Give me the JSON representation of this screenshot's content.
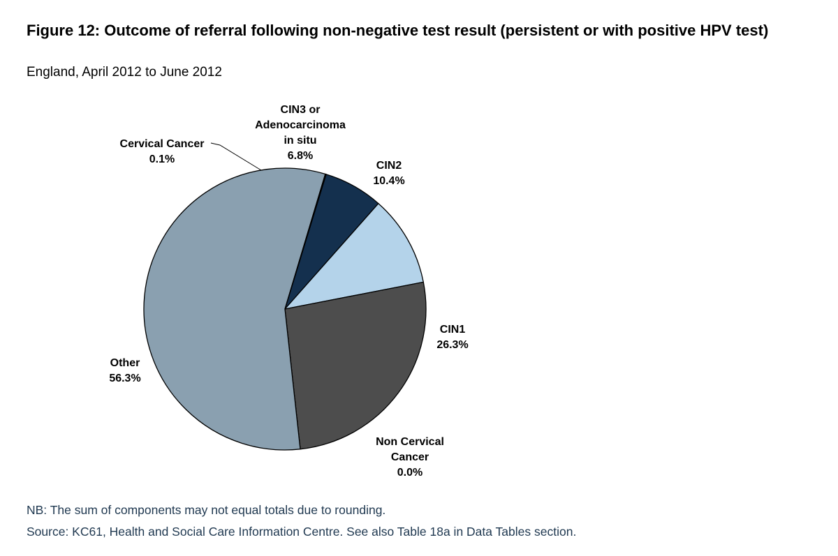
{
  "title": "Figure 12: Outcome of referral following non-negative test result (persistent or with positive HPV test)",
  "subtitle": "England, April 2012 to June 2012",
  "note": "NB: The sum of components may not equal totals due to rounding.",
  "source": "Source: KC61, Health and Social Care Information Centre. See also Table 18a in Data Tables section.",
  "chart_data": {
    "type": "pie",
    "slices": [
      {
        "label_lines": [
          "CIN3 or",
          "Adenocarcinoma",
          "in situ",
          "6.8%"
        ],
        "category": "CIN3 or Adenocarcinoma in situ",
        "value": 6.8,
        "color": "#14304e"
      },
      {
        "label_lines": [
          "CIN2",
          "10.4%"
        ],
        "category": "CIN2",
        "value": 10.4,
        "color": "#b4d3ea"
      },
      {
        "label_lines": [
          "CIN1",
          "26.3%"
        ],
        "category": "CIN1",
        "value": 26.3,
        "color": "#4d4d4d"
      },
      {
        "label_lines": [
          "Non Cervical",
          "Cancer",
          "0.0%"
        ],
        "category": "Non Cervical Cancer",
        "value": 0.0,
        "color": "#d9d9d9"
      },
      {
        "label_lines": [
          "Other",
          "56.3%"
        ],
        "category": "Other",
        "value": 56.3,
        "color": "#8aa0b0"
      },
      {
        "label_lines": [
          "Cervical Cancer",
          "0.1%"
        ],
        "category": "Cervical Cancer",
        "value": 0.1,
        "color": "#6e6e6e"
      }
    ]
  }
}
